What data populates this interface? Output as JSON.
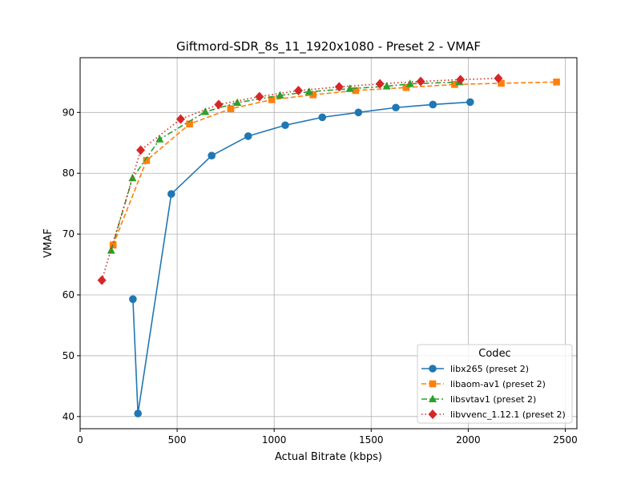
{
  "chart_data": {
    "type": "line",
    "title": "Giftmord-SDR_8s_11_1920x1080 - Preset 2 - VMAF",
    "xlabel": "Actual Bitrate (kbps)",
    "ylabel": "VMAF",
    "xlim": [
      0,
      2560
    ],
    "ylim": [
      38,
      99
    ],
    "xticks": [
      0,
      500,
      1000,
      1500,
      2000,
      2500
    ],
    "yticks": [
      40,
      50,
      60,
      70,
      80,
      90
    ],
    "grid": true,
    "legend": {
      "title": "Codec",
      "position": "bottom-right"
    },
    "series": [
      {
        "name": "libx265 (preset 2)",
        "color": "#1f77b4",
        "marker": "circle",
        "line_style": "solid",
        "x": [
          272,
          298,
          470,
          678,
          866,
          1057,
          1248,
          1434,
          1627,
          1818,
          2010
        ],
        "y": [
          59.3,
          40.5,
          76.6,
          82.9,
          86.1,
          87.9,
          89.2,
          90.0,
          90.8,
          91.3,
          91.7
        ]
      },
      {
        "name": "libaom-av1 (preset 2)",
        "color": "#ff7f0e",
        "marker": "square",
        "line_style": "dashed",
        "x": [
          170,
          342,
          564,
          776,
          988,
          1200,
          1420,
          1680,
          1930,
          2170,
          2455
        ],
        "y": [
          68.2,
          82.1,
          88.1,
          90.6,
          92.1,
          92.9,
          93.6,
          94.1,
          94.6,
          94.8,
          95.0
        ]
      },
      {
        "name": "libsvtav1 (preset 2)",
        "color": "#2ca02c",
        "marker": "triangle",
        "line_style": "dashdot",
        "x": [
          160,
          270,
          410,
          645,
          810,
          1030,
          1180,
          1390,
          1580,
          1700,
          1955
        ],
        "y": [
          67.3,
          79.2,
          85.6,
          90.1,
          91.6,
          92.8,
          93.4,
          93.9,
          94.3,
          94.7,
          95.0
        ]
      },
      {
        "name": "libvvenc_1.12.1 (preset 2)",
        "color": "#d62728",
        "marker": "diamond",
        "line_style": "dotted",
        "x": [
          112,
          312,
          518,
          714,
          924,
          1125,
          1335,
          1545,
          1755,
          1960,
          2155
        ],
        "y": [
          62.4,
          83.8,
          88.9,
          91.3,
          92.6,
          93.6,
          94.2,
          94.7,
          95.1,
          95.4,
          95.6
        ]
      }
    ]
  }
}
